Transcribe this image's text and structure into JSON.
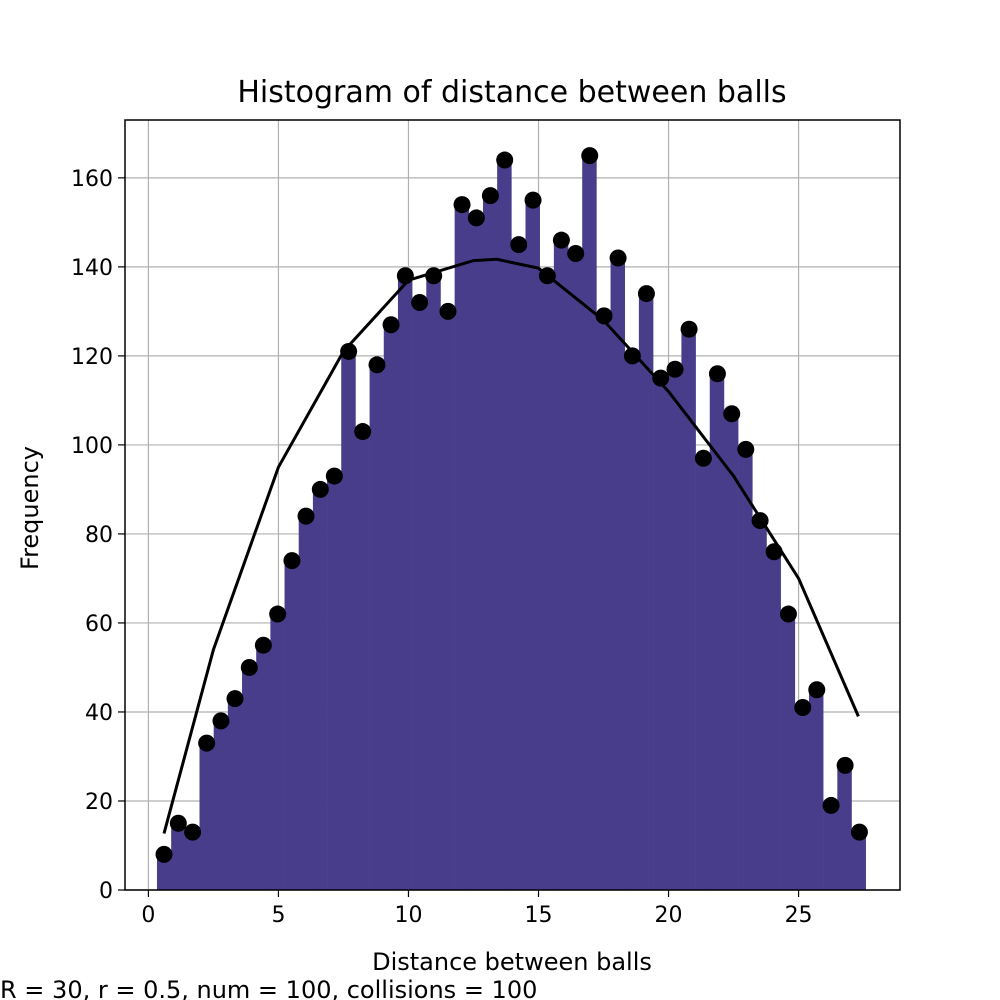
{
  "chart_data": {
    "type": "bar",
    "title": "Histogram of distance between balls",
    "xlabel": "Distance between balls",
    "ylabel": "Frequency",
    "footnote": "R = 30, r = 0.5, num = 100, collisions = 100",
    "xlim": [
      -0.9,
      28.9
    ],
    "ylim": [
      0,
      173
    ],
    "xticks": [
      0,
      5,
      10,
      15,
      20,
      25
    ],
    "yticks": [
      0,
      20,
      40,
      60,
      80,
      100,
      120,
      140,
      160
    ],
    "grid": true,
    "bar_color": "#483d8b",
    "point_color": "#000000",
    "curve_color": "#000000",
    "bin_start": 0.33,
    "bin_width": 0.545,
    "values": [
      8,
      15,
      13,
      33,
      38,
      43,
      50,
      55,
      62,
      74,
      84,
      90,
      93,
      121,
      103,
      118,
      127,
      138,
      132,
      138,
      130,
      154,
      151,
      156,
      164,
      145,
      155,
      138,
      146,
      143,
      165,
      129,
      142,
      120,
      134,
      115,
      117,
      126,
      97,
      116,
      107,
      99,
      83,
      76,
      62,
      41,
      45,
      19,
      28,
      13
    ],
    "points_x": [
      0.6,
      1.15,
      1.7,
      2.24,
      2.79,
      3.33,
      3.88,
      4.42,
      4.97,
      5.52,
      6.06,
      6.61,
      7.15,
      7.7,
      8.24,
      8.79,
      9.33,
      9.88,
      10.43,
      10.97,
      11.52,
      12.06,
      12.61,
      13.15,
      13.7,
      14.24,
      14.79,
      15.34,
      15.88,
      16.43,
      16.97,
      17.52,
      18.06,
      18.61,
      19.15,
      19.7,
      20.25,
      20.79,
      21.34,
      21.88,
      22.43,
      22.97,
      23.52,
      24.06,
      24.61,
      25.16,
      25.7,
      26.25,
      26.79,
      27.34
    ],
    "curve_x": [
      0.6,
      2.5,
      5,
      7.5,
      10,
      12.5,
      13.4,
      15,
      17.5,
      20,
      22.5,
      25,
      27.3
    ],
    "curve_y": [
      12.7,
      54,
      95,
      121,
      137,
      141.4,
      141.7,
      139.7,
      128,
      112,
      93,
      70,
      39
    ]
  }
}
